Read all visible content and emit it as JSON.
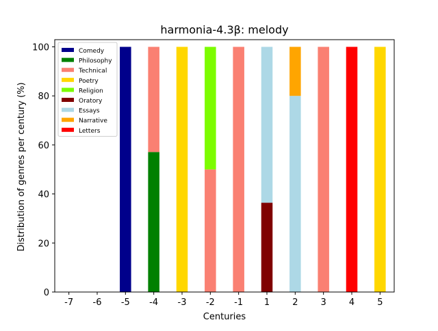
{
  "chart_data": {
    "type": "bar",
    "stacked": true,
    "title": "harmonia-4.3β: melody",
    "xlabel": "Centuries",
    "ylabel": "Distribution of genres per century (%)",
    "ylim": [
      0,
      100
    ],
    "yticks": [
      0,
      20,
      40,
      60,
      80,
      100
    ],
    "categories": [
      "-7",
      "-6",
      "-5",
      "-4",
      "-3",
      "-2",
      "-1",
      "1",
      "2",
      "3",
      "4",
      "5"
    ],
    "grid": false,
    "legend_position": "top-left",
    "series": [
      {
        "name": "Comedy",
        "color": "#00008b",
        "values": [
          0,
          0,
          100,
          0,
          0,
          0,
          0,
          0,
          0,
          0,
          0,
          0
        ]
      },
      {
        "name": "Philosophy",
        "color": "#008000",
        "values": [
          0,
          0,
          0,
          57.1,
          0,
          0,
          0,
          0,
          0,
          0,
          0,
          0
        ]
      },
      {
        "name": "Technical",
        "color": "#fa8072",
        "values": [
          0,
          0,
          0,
          42.9,
          0,
          50,
          100,
          0,
          0,
          100,
          0,
          0
        ]
      },
      {
        "name": "Poetry",
        "color": "#ffd700",
        "values": [
          0,
          0,
          0,
          0,
          100,
          0,
          0,
          0,
          0,
          0,
          0,
          100
        ]
      },
      {
        "name": "Religion",
        "color": "#7cfc00",
        "values": [
          0,
          0,
          0,
          0,
          0,
          50,
          0,
          0,
          0,
          0,
          0,
          0
        ]
      },
      {
        "name": "Oratory",
        "color": "#800000",
        "values": [
          0,
          0,
          0,
          0,
          0,
          0,
          0,
          36.4,
          0,
          0,
          0,
          0
        ]
      },
      {
        "name": "Essays",
        "color": "#add8e6",
        "values": [
          0,
          0,
          0,
          0,
          0,
          0,
          0,
          63.6,
          80,
          0,
          0,
          0
        ]
      },
      {
        "name": "Narrative",
        "color": "#ffa500",
        "values": [
          0,
          0,
          0,
          0,
          0,
          0,
          0,
          0,
          20,
          0,
          0,
          0
        ]
      },
      {
        "name": "Letters",
        "color": "#ff0000",
        "values": [
          0,
          0,
          0,
          0,
          0,
          0,
          0,
          0,
          0,
          0,
          100,
          0
        ]
      }
    ]
  }
}
